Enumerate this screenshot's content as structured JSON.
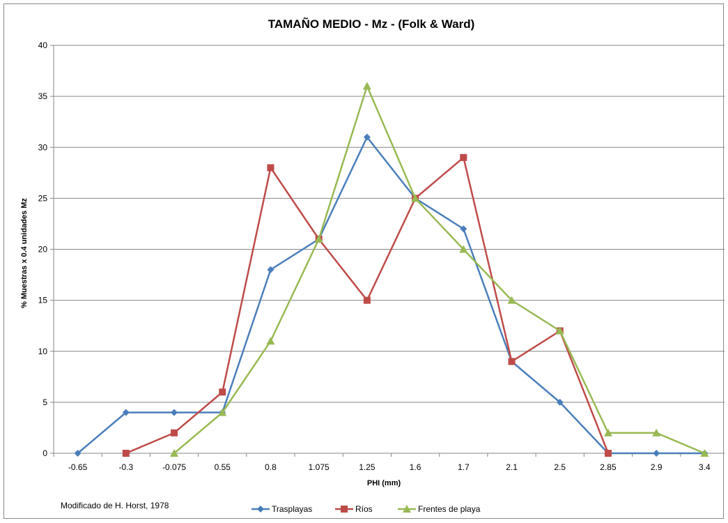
{
  "chart_data": {
    "type": "line",
    "title": "TAMAÑO MEDIO - Mz - (Folk & Ward)",
    "xlabel": "PHI (mm)",
    "ylabel": "% Muestras x 0.4 unidades Mz",
    "categories": [
      "-0.65",
      "-0.3",
      "-0.075",
      "0.55",
      "0.8",
      "1.075",
      "1.25",
      "1.6",
      "1.7",
      "2.1",
      "2.5",
      "2.85",
      "2.9",
      "3.4"
    ],
    "ylim": [
      0,
      40
    ],
    "yticks": [
      0,
      5,
      10,
      15,
      20,
      25,
      30,
      35,
      40
    ],
    "grid": "horizontal",
    "legend_position": "bottom",
    "series": [
      {
        "name": "Trasplayas",
        "color": "#4a7ebb",
        "marker": "diamond",
        "values": [
          0,
          4,
          4,
          4,
          18,
          21,
          31,
          25,
          22,
          9,
          5,
          0,
          0,
          0
        ]
      },
      {
        "name": "Ríos",
        "color": "#be4b48",
        "marker": "square",
        "values": [
          null,
          0,
          2,
          6,
          28,
          21,
          15,
          25,
          29,
          9,
          12,
          0,
          null,
          null
        ]
      },
      {
        "name": "Frentes de playa",
        "color": "#98b954",
        "marker": "triangle",
        "values": [
          null,
          null,
          0,
          4,
          11,
          21,
          36,
          25,
          20,
          15,
          12,
          2,
          2,
          0
        ]
      }
    ],
    "annotation": "Modificado de H. Horst, 1978"
  }
}
